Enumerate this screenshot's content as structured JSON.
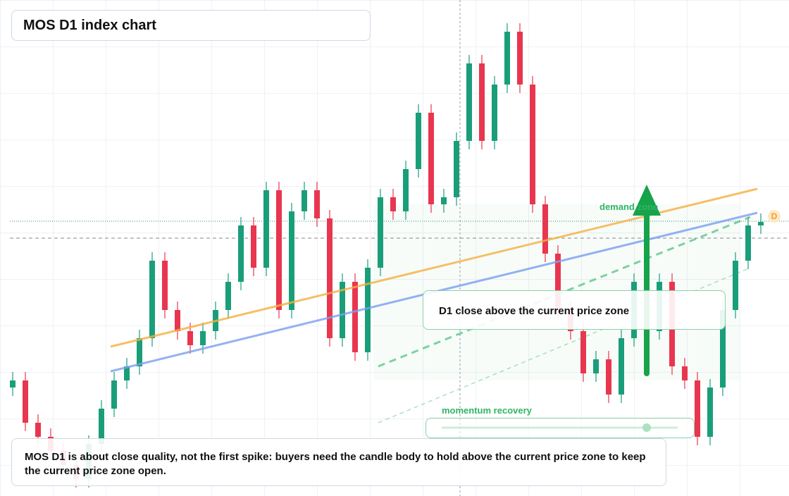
{
  "chart_data": {
    "type": "candlestick",
    "title": "MOS D1 index chart",
    "ylim": [
      0,
      704
    ],
    "up_color": "#1a9e7a",
    "down_color": "#e8364f",
    "open": [
      154,
      164,
      104,
      84,
      64,
      44,
      24,
      74,
      124,
      164,
      184,
      224,
      334,
      264,
      234,
      214,
      234,
      264,
      304,
      384,
      324,
      434,
      264,
      404,
      434,
      394,
      224,
      304,
      204,
      324,
      424,
      404,
      464,
      544,
      414,
      424,
      504,
      614,
      504,
      584,
      659,
      584,
      414,
      344,
      264,
      234,
      174,
      194,
      144,
      224,
      304,
      234,
      304,
      184,
      164,
      84,
      154,
      264,
      334,
      384
    ],
    "high": [
      176,
      176,
      116,
      96,
      76,
      56,
      86,
      136,
      176,
      196,
      236,
      346,
      346,
      276,
      246,
      246,
      276,
      316,
      396,
      396,
      446,
      446,
      416,
      446,
      446,
      406,
      316,
      316,
      336,
      436,
      436,
      476,
      556,
      556,
      436,
      516,
      626,
      626,
      596,
      671,
      671,
      596,
      426,
      356,
      276,
      246,
      206,
      206,
      236,
      316,
      316,
      316,
      316,
      196,
      176,
      166,
      276,
      346,
      396,
      401
    ],
    "low": [
      142,
      92,
      72,
      52,
      32,
      12,
      12,
      62,
      112,
      152,
      172,
      212,
      252,
      222,
      202,
      202,
      222,
      252,
      292,
      312,
      312,
      252,
      252,
      392,
      382,
      212,
      212,
      192,
      192,
      312,
      392,
      392,
      452,
      402,
      402,
      412,
      492,
      492,
      492,
      572,
      572,
      402,
      332,
      252,
      222,
      162,
      162,
      132,
      132,
      212,
      222,
      222,
      172,
      152,
      72,
      72,
      142,
      252,
      322,
      372
    ],
    "close": [
      164,
      104,
      84,
      64,
      44,
      24,
      74,
      124,
      164,
      184,
      224,
      334,
      264,
      234,
      214,
      234,
      264,
      304,
      384,
      324,
      434,
      264,
      404,
      434,
      394,
      224,
      304,
      204,
      324,
      424,
      404,
      464,
      544,
      414,
      424,
      504,
      614,
      504,
      584,
      659,
      584,
      414,
      344,
      264,
      234,
      174,
      194,
      144,
      224,
      304,
      234,
      304,
      184,
      164,
      84,
      154,
      264,
      334,
      384,
      389
    ],
    "annotations": {
      "demand": "demand zone",
      "zone": "D1 close above the current price zone",
      "momentum": "momentum recovery",
      "marker": "D",
      "note": "MOS D1 is about close quality, not the first spike: buyers need the candle body to hold above the current price zone to keep the current price zone open."
    }
  }
}
